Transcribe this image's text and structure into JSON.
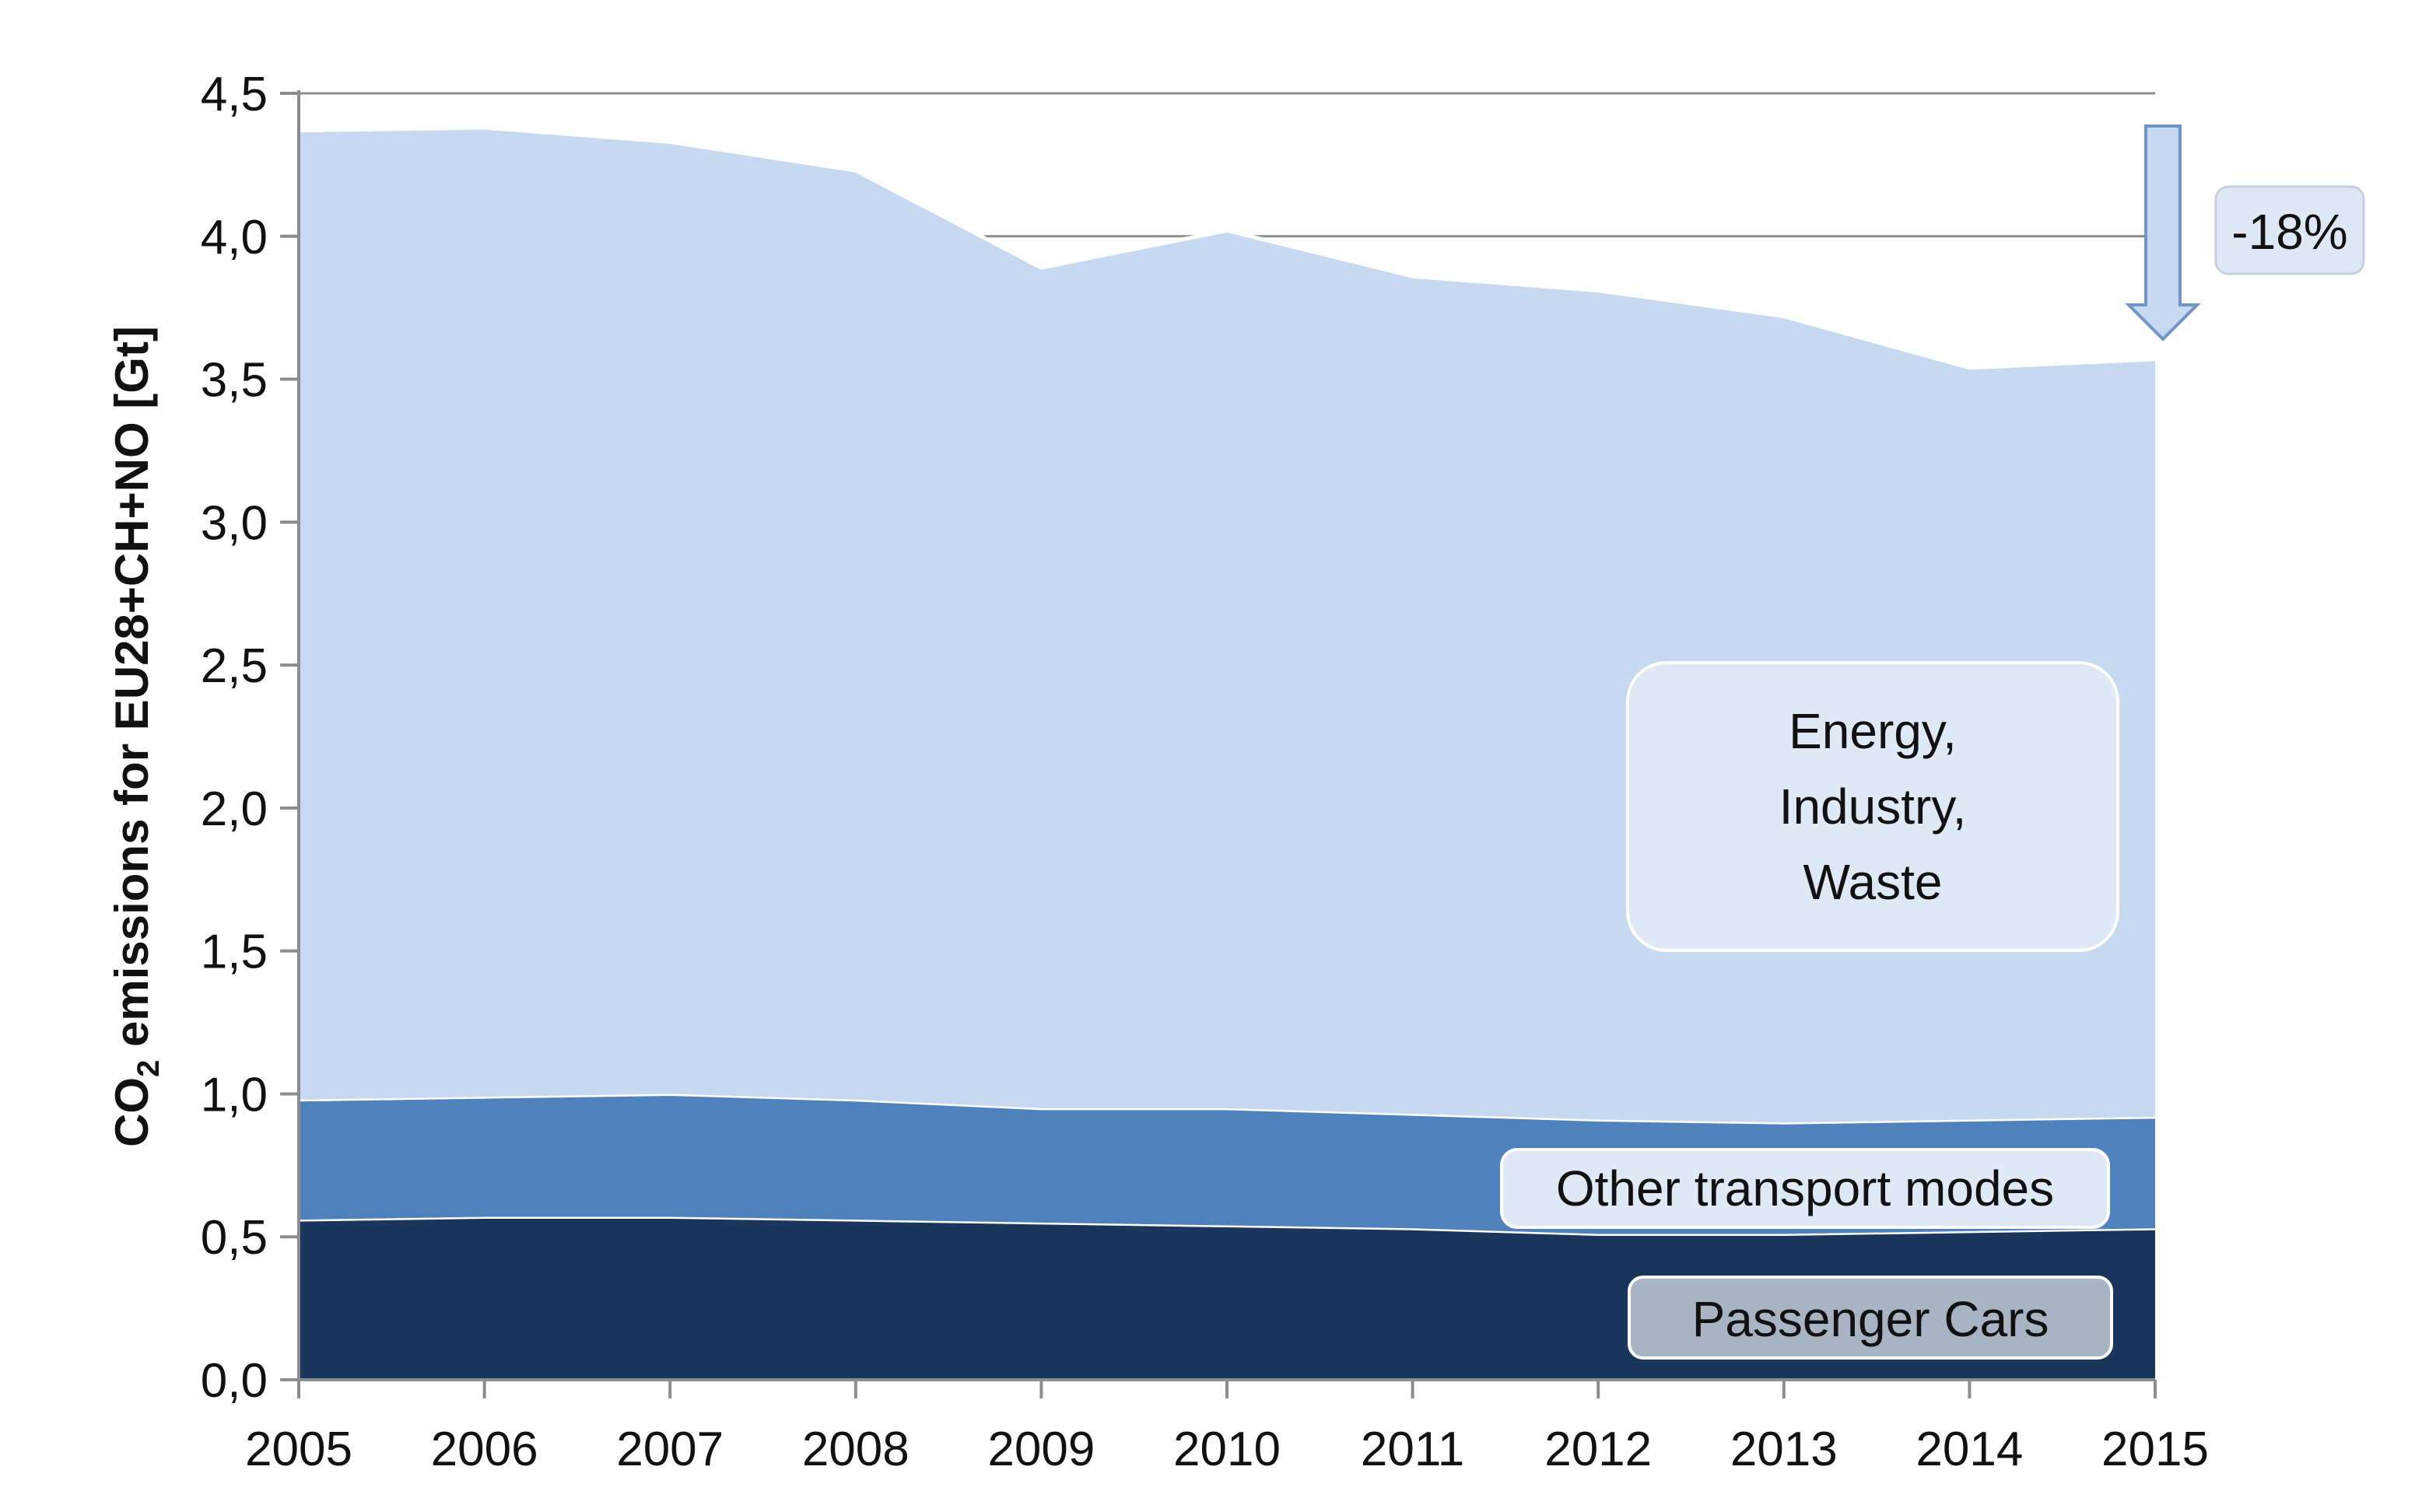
{
  "chart_data": {
    "type": "area",
    "stacked": true,
    "x": [
      2005,
      2006,
      2007,
      2008,
      2009,
      2010,
      2011,
      2012,
      2013,
      2014,
      2015
    ],
    "series": [
      {
        "name": "Passenger Cars",
        "color": "#1b365d",
        "values": [
          0.56,
          0.57,
          0.57,
          0.56,
          0.55,
          0.54,
          0.53,
          0.51,
          0.51,
          0.52,
          0.53
        ]
      },
      {
        "name": "Other transport modes",
        "color": "#4f81bd",
        "values": [
          0.42,
          0.42,
          0.43,
          0.42,
          0.4,
          0.41,
          0.4,
          0.4,
          0.39,
          0.39,
          0.39
        ]
      },
      {
        "name": "Energy, Industry, Waste",
        "color": "#c6d9f0",
        "values": [
          3.39,
          3.39,
          3.33,
          3.25,
          2.94,
          3.07,
          2.93,
          2.9,
          2.82,
          2.63,
          2.65
        ]
      }
    ],
    "ylabel_main": "CO",
    "ylabel_sub": "2",
    "ylabel_rest": " emissions for EU28+CH+NO [Gt]",
    "xlabel": "",
    "ylim": [
      0,
      4.5
    ],
    "yticks": [
      "0,0",
      "0,5",
      "1,0",
      "1,5",
      "2,0",
      "2,5",
      "3,0",
      "3,5",
      "4,0",
      "4,5"
    ],
    "xticks": [
      "2005",
      "2006",
      "2007",
      "2008",
      "2009",
      "2010",
      "2011",
      "2012",
      "2013",
      "2014",
      "2015"
    ],
    "gridlines": "horizontal",
    "labels": {
      "cars": "Passenger Cars",
      "other": "Other transport modes",
      "energy_lines": [
        "Energy,",
        "Industry,",
        "Waste"
      ]
    },
    "annotation": {
      "text": "-18%",
      "arrow_color": "#95b3d7",
      "arrow_fill": "#c6d9f0"
    }
  }
}
